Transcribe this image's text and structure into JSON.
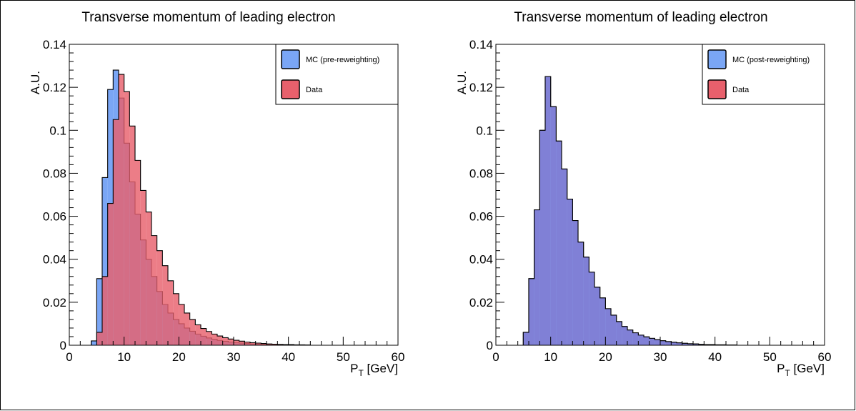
{
  "chart_data": [
    {
      "type": "histogram",
      "title": "Transverse momentum of leading electron",
      "xlabel": {
        "main": "P",
        "sub": "T",
        "unit": "[GeV]"
      },
      "ylabel": "A.U.",
      "xlim": [
        0,
        60
      ],
      "ylim": [
        0,
        0.14
      ],
      "x_ticks": [
        "0",
        "10",
        "20",
        "30",
        "40",
        "50",
        "60"
      ],
      "y_ticks": [
        "0",
        "0.02",
        "0.04",
        "0.06",
        "0.08",
        "0.1",
        "0.12",
        "0.14"
      ],
      "bin_width": 1,
      "legend": {
        "position": "top-right"
      },
      "series": [
        {
          "name": "MC (pre-reweighting)",
          "color": "#7aa6f5",
          "edge": "#000000",
          "x_start": 4,
          "values": [
            0.002,
            0.031,
            0.078,
            0.119,
            0.128,
            0.115,
            0.094,
            0.076,
            0.061,
            0.049,
            0.04,
            0.032,
            0.025,
            0.019,
            0.015,
            0.012,
            0.01,
            0.008,
            0.0065,
            0.0052,
            0.0042,
            0.0034,
            0.0028,
            0.0022,
            0.0018,
            0.0015,
            0.0012,
            0.001,
            0.0008,
            0.0006,
            0.0005,
            0.0004,
            0.0003,
            0.0002,
            0.0002,
            0.0001,
            0.0001,
            0.0001,
            0.0001,
            0.0001
          ]
        },
        {
          "name": "Data",
          "color": "#e8606c",
          "edge": "#000000",
          "x_start": 5,
          "values": [
            0.006,
            0.032,
            0.066,
            0.105,
            0.126,
            0.118,
            0.102,
            0.086,
            0.072,
            0.062,
            0.051,
            0.044,
            0.037,
            0.03,
            0.024,
            0.019,
            0.015,
            0.012,
            0.0095,
            0.0078,
            0.0064,
            0.0052,
            0.0043,
            0.0035,
            0.0029,
            0.0023,
            0.0019,
            0.0015,
            0.0012,
            0.001,
            0.0008,
            0.0006,
            0.0005,
            0.0004,
            0.0003,
            0.0003,
            0.0002,
            0.0002,
            0.0001
          ]
        }
      ]
    },
    {
      "type": "histogram",
      "title": "Transverse momentum of leading electron",
      "xlabel": {
        "main": "P",
        "sub": "T",
        "unit": "[GeV]"
      },
      "ylabel": "A.U.",
      "xlim": [
        0,
        60
      ],
      "ylim": [
        0,
        0.14
      ],
      "x_ticks": [
        "0",
        "10",
        "20",
        "30",
        "40",
        "50",
        "60"
      ],
      "y_ticks": [
        "0",
        "0.02",
        "0.04",
        "0.06",
        "0.08",
        "0.1",
        "0.12",
        "0.14"
      ],
      "bin_width": 1,
      "legend": {
        "position": "top-right"
      },
      "overlay_color": "#8080d6",
      "series": [
        {
          "name": "MC (post-reweighting)",
          "color": "#7aa6f5",
          "edge": "#000000",
          "x_start": 5,
          "values": [
            0.006,
            0.031,
            0.063,
            0.1,
            0.125,
            0.111,
            0.095,
            0.082,
            0.068,
            0.058,
            0.048,
            0.041,
            0.034,
            0.027,
            0.022,
            0.017,
            0.014,
            0.011,
            0.0087,
            0.0071,
            0.0058,
            0.0047,
            0.0039,
            0.0032,
            0.0026,
            0.0021,
            0.0017,
            0.0014,
            0.0011,
            0.0009,
            0.0007,
            0.0006,
            0.0004,
            0.0003,
            0.0003,
            0.0002,
            0.0002,
            0.0001,
            0.0001
          ]
        },
        {
          "name": "Data",
          "color": "#e8606c",
          "edge": "#000000",
          "x_start": 5,
          "values": [
            0.006,
            0.031,
            0.063,
            0.1,
            0.125,
            0.111,
            0.095,
            0.082,
            0.068,
            0.058,
            0.048,
            0.041,
            0.034,
            0.027,
            0.022,
            0.017,
            0.014,
            0.011,
            0.0087,
            0.0071,
            0.0058,
            0.0047,
            0.0039,
            0.0032,
            0.0026,
            0.0021,
            0.0017,
            0.0014,
            0.0011,
            0.0009,
            0.0007,
            0.0006,
            0.0004,
            0.0003,
            0.0003,
            0.0002,
            0.0002,
            0.0001,
            0.0001
          ]
        }
      ]
    }
  ]
}
